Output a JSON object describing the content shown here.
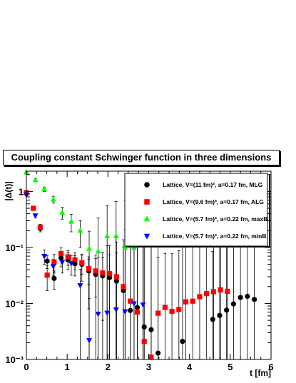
{
  "chart_data": {
    "type": "scatter",
    "title": "Coupling constant Schwinger function in three dimensions",
    "xlabel": "t [fm]",
    "ylabel": "|Δ(t)|",
    "xlim": [
      0,
      6
    ],
    "ylim": [
      0.001,
      2.3
    ],
    "yscale": "log",
    "x_ticks": [
      0,
      1,
      2,
      3,
      4,
      5,
      6
    ],
    "y_ticks": [
      {
        "value": 0.001,
        "label": "10⁻³"
      },
      {
        "value": 0.01,
        "label": "10⁻²"
      },
      {
        "value": 0.1,
        "label": "10⁻¹"
      },
      {
        "value": 1,
        "label": "1"
      }
    ],
    "legend_position": "top-right",
    "series": [
      {
        "name": "Lattice, V=(11 fm)³, a=0.17 fm, MLG",
        "marker": "circle",
        "color": "#000000",
        "x": [
          0.34,
          0.51,
          0.68,
          0.85,
          1.02,
          1.19,
          1.36,
          1.53,
          1.7,
          1.87,
          2.04,
          2.21,
          2.38,
          2.55,
          2.72,
          2.89,
          3.06,
          3.23,
          3.83,
          4.57,
          4.74,
          4.91,
          5.08,
          5.25,
          5.42,
          5.59
        ],
        "y": [
          0.22,
          0.057,
          0.028,
          0.065,
          0.06,
          0.051,
          0.05,
          0.038,
          0.033,
          0.031,
          0.029,
          0.025,
          0.017,
          0.0075,
          0.0085,
          0.0038,
          0.0034,
          0.0013,
          0.0021,
          0.0052,
          0.0061,
          0.0076,
          0.0098,
          0.0128,
          0.0134,
          0.0118
        ],
        "errors": [
          0.03,
          0.015,
          0.01,
          0.02,
          0.02,
          0.02,
          0.025,
          0.03,
          0.04,
          0.05,
          0.08,
          0.1,
          0.12,
          0.15,
          0.2,
          0.25,
          0.3,
          0.35,
          0.2,
          0.08,
          0.1,
          0.12,
          0.15,
          0.18,
          0.2,
          0.2
        ]
      },
      {
        "name": "Lattice, V=(9.6 fm)³, a=0.17 fm, ALG",
        "marker": "square",
        "color": "#ff0000",
        "x": [
          0.0,
          0.17,
          0.34,
          0.51,
          0.68,
          0.85,
          1.02,
          1.19,
          1.36,
          1.53,
          1.7,
          1.87,
          2.04,
          2.21,
          2.38,
          2.55,
          2.72,
          2.89,
          3.06,
          3.23,
          3.4,
          3.57,
          3.74,
          3.91,
          4.08,
          4.25,
          4.42,
          4.59,
          4.76,
          4.93
        ],
        "y": [
          0.95,
          0.5,
          0.23,
          0.032,
          0.055,
          0.078,
          0.068,
          0.06,
          0.053,
          0.042,
          0.038,
          0.035,
          0.034,
          0.03,
          0.02,
          0.011,
          0.007,
          0.0021,
          0.0011,
          0.0067,
          0.0085,
          0.0072,
          0.0078,
          0.0107,
          0.011,
          0.0132,
          0.015,
          0.0162,
          0.0175,
          0.0165
        ],
        "errors": [
          0.05,
          0.03,
          0.03,
          0.015,
          0.02,
          0.02,
          0.02,
          0.02,
          0.02,
          0.02,
          0.025,
          0.03,
          0.04,
          0.05,
          0.08,
          0.1,
          0.12,
          0.15,
          0.2,
          0.06,
          0.07,
          0.07,
          0.08,
          0.09,
          0.1,
          0.11,
          0.12,
          0.13,
          0.14,
          0.15
        ]
      },
      {
        "name": "Lattice, V=(5.7 fm)³, a=0.22 fm, maxB",
        "marker": "triangle-up",
        "color": "#00ff00",
        "x": [
          0.0,
          0.22,
          0.44,
          0.66,
          0.88,
          1.1,
          1.32,
          1.54,
          1.76,
          1.98,
          2.2,
          2.42,
          2.64,
          2.86
        ],
        "y": [
          2.2,
          1.6,
          1.1,
          0.72,
          0.42,
          0.29,
          0.2,
          0.095,
          0.085,
          0.16,
          0.16,
          0.1,
          0.1,
          0.11
        ],
        "errors": [
          0.1,
          0.1,
          0.1,
          0.1,
          0.1,
          0.1,
          0.1,
          0.1,
          0.25,
          0.4,
          0.5,
          0.6,
          0.5,
          0.5
        ]
      },
      {
        "name": "Lattice, V=(5.7 fm)³, a=0.22 fm, minB",
        "marker": "triangle-down",
        "color": "#0000ff",
        "x": [
          0.0,
          0.22,
          0.44,
          0.66,
          0.88,
          1.1,
          1.32,
          1.54,
          1.76,
          1.98,
          2.2,
          2.42,
          2.64,
          2.86
        ],
        "y": [
          0.88,
          0.37,
          0.07,
          0.046,
          0.055,
          0.052,
          0.021,
          0.0022,
          0.0065,
          0.0068,
          0.0078,
          0.0072,
          0.01,
          0.0095
        ],
        "errors": [
          0.05,
          0.03,
          0.02,
          0.015,
          0.02,
          0.02,
          0.02,
          0.01,
          0.06,
          0.1,
          0.15,
          0.2,
          0.25,
          0.3
        ]
      }
    ]
  }
}
